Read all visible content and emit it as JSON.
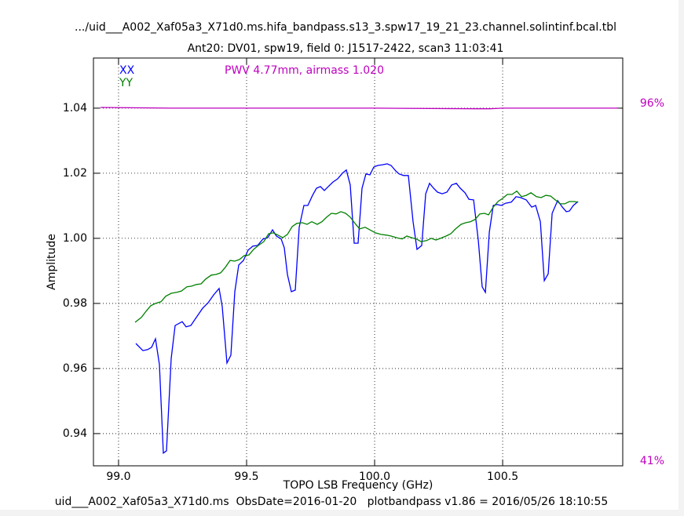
{
  "chart_data": {
    "type": "line",
    "title": ".../uid___A002_Xaf05a3_X71d0.ms.hifa_bandpass.s13_3.spw17_19_21_23.channel.solintinf.bcal.tbl",
    "subtitle": "Ant20: DV01,  spw19,  field 0: J1517-2422,  scan3  11:03:41",
    "annotation": "PWV 4.77mm, airmass 1.020",
    "annotation_color": "#bf00bf",
    "footer": "uid___A002_Xaf05a3_X71d0.ms  ObsDate=2016-01-20   plotbandpass v1.86 = 2016/05/26 18:10:55",
    "xlabel": "TOPO LSB Frequency (GHz)",
    "ylabel": "Amplitude",
    "xlim": [
      98.902,
      100.969
    ],
    "xticks": [
      {
        "value": 99.0,
        "label": "99.0"
      },
      99.5,
      {
        "value": 100.0,
        "label": "100.0"
      },
      100.5
    ],
    "ylim": [
      0.9301,
      1.0554
    ],
    "yticks": [
      0.94,
      0.96,
      0.98,
      {
        "value": 1.0,
        "label": "1.00"
      },
      1.02,
      1.04
    ],
    "y2lim": [
      40.3,
      103.0
    ],
    "y2ticks": [
      {
        "value": 96,
        "label": "96%"
      },
      {
        "value": 41,
        "label": "41%"
      }
    ],
    "grid": true,
    "legend": "upper left",
    "series": [
      {
        "name": "XX",
        "color": "#0000ff",
        "x": [
          99.0675,
          99.0951,
          99.1135,
          99.1288,
          99.1442,
          99.1595,
          99.1748,
          99.1871,
          99.2055,
          99.2209,
          99.2485,
          99.2638,
          99.2822,
          99.3037,
          99.3282,
          99.3497,
          99.3712,
          99.3926,
          99.4049,
          99.4233,
          99.4387,
          99.454,
          99.4693,
          99.4877,
          99.5061,
          99.5245,
          99.5429,
          99.5644,
          99.5828,
          99.6012,
          99.6166,
          99.635,
          99.6472,
          99.6595,
          99.6748,
          99.6902,
          99.7055,
          99.7239,
          99.7393,
          99.7577,
          99.773,
          99.7883,
          99.8037,
          99.819,
          99.8374,
          99.8558,
          99.8742,
          99.8896,
          99.9049,
          99.9202,
          99.9356,
          99.9509,
          99.9663,
          99.9816,
          99.9969,
          100.0123,
          100.0307,
          100.0491,
          100.0644,
          100.0828,
          100.0951,
          100.1135,
          100.1319,
          100.1503,
          100.1656,
          100.184,
          100.1994,
          100.2147,
          100.2301,
          100.2454,
          100.2638,
          100.2822,
          100.3006,
          100.319,
          100.3344,
          100.3528,
          100.3681,
          100.3865,
          100.4049,
          100.4202,
          100.4325,
          100.4479,
          100.4632,
          100.4785,
          100.4939,
          100.5123,
          100.5337,
          100.5521,
          100.5706,
          100.592,
          100.6135,
          100.6288,
          100.6472,
          100.6626,
          100.6779,
          100.6933,
          100.7147,
          100.7331,
          100.7485,
          100.7607,
          100.7761,
          100.7945
        ],
        "values": [
          0.9677,
          0.9655,
          0.9658,
          0.9665,
          0.9691,
          0.9612,
          0.934,
          0.9347,
          0.9631,
          0.9732,
          0.9744,
          0.9728,
          0.9732,
          0.9757,
          0.9785,
          0.9802,
          0.9826,
          0.9846,
          0.979,
          0.9617,
          0.9641,
          0.9836,
          0.9918,
          0.9932,
          0.9964,
          0.9976,
          0.9978,
          0.9998,
          1.0002,
          1.0026,
          1.0007,
          0.9998,
          0.9971,
          0.9889,
          0.9836,
          0.9841,
          1.0034,
          1.0101,
          1.0101,
          1.0132,
          1.0154,
          1.0159,
          1.0147,
          1.0159,
          1.0173,
          1.0183,
          1.02,
          1.021,
          1.0164,
          0.9985,
          0.9985,
          1.0154,
          1.0198,
          1.0195,
          1.0219,
          1.0224,
          1.0226,
          1.0229,
          1.0224,
          1.0207,
          1.0198,
          1.0193,
          1.0193,
          1.0051,
          0.9966,
          0.9978,
          1.0137,
          1.0169,
          1.0154,
          1.0142,
          1.0137,
          1.0142,
          1.0164,
          1.0169,
          1.0154,
          1.014,
          1.012,
          1.0118,
          0.9993,
          0.9851,
          0.9834,
          1.0019,
          1.0101,
          1.0104,
          1.0101,
          1.0108,
          1.0111,
          1.0128,
          1.0125,
          1.0118,
          1.0096,
          1.0101,
          1.0051,
          0.987,
          0.9891,
          1.0077,
          1.0116,
          1.0096,
          1.0082,
          1.0084,
          1.0101,
          1.0113
        ]
      },
      {
        "name": "YY",
        "color": "#008000",
        "x": [
          99.0644,
          99.089,
          99.1074,
          99.1258,
          99.1442,
          99.1656,
          99.184,
          99.2055,
          99.227,
          99.2454,
          99.2669,
          99.2853,
          99.3037,
          99.3221,
          99.3405,
          99.362,
          99.3804,
          99.3988,
          99.4172,
          99.4356,
          99.454,
          99.4724,
          99.4908,
          99.5092,
          99.5276,
          99.546,
          99.5675,
          99.5859,
          99.6043,
          99.6227,
          99.6411,
          99.6595,
          99.6779,
          99.6963,
          99.7178,
          99.7362,
          99.7546,
          99.7761,
          99.7945,
          99.8129,
          99.8313,
          99.8497,
          99.8681,
          99.8865,
          99.9049,
          99.9233,
          99.9417,
          99.9632,
          99.9816,
          100.0031,
          100.0245,
          100.046,
          100.0644,
          100.0859,
          100.1074,
          100.1258,
          100.1442,
          100.1626,
          100.181,
          100.2025,
          100.2209,
          100.2393,
          100.2577,
          100.2791,
          100.2975,
          100.316,
          100.3374,
          100.3558,
          100.3742,
          100.3926,
          100.411,
          100.4294,
          100.4448,
          100.4632,
          100.4816,
          100.5,
          100.5184,
          100.5368,
          100.5552,
          100.5736,
          100.592,
          100.6104,
          100.6319,
          100.6503,
          100.6687,
          100.6871,
          100.7055,
          100.7239,
          100.7423,
          100.7607,
          100.7791,
          100.7945
        ],
        "values": [
          0.9742,
          0.9757,
          0.9776,
          0.9793,
          0.98,
          0.9805,
          0.9822,
          0.9831,
          0.9834,
          0.9838,
          0.9851,
          0.9853,
          0.9858,
          0.986,
          0.9875,
          0.9887,
          0.9889,
          0.9894,
          0.9911,
          0.9932,
          0.993,
          0.9935,
          0.9947,
          0.9949,
          0.9966,
          0.9978,
          0.999,
          1.0014,
          1.0017,
          1.001,
          1.0002,
          1.0012,
          1.0036,
          1.0046,
          1.0048,
          1.0043,
          1.0051,
          1.0043,
          1.0051,
          1.0065,
          1.0077,
          1.0075,
          1.0082,
          1.0077,
          1.0065,
          1.0046,
          1.0029,
          1.0034,
          1.0026,
          1.0017,
          1.0012,
          1.001,
          1.0007,
          1.0002,
          0.9998,
          1.0007,
          1.0002,
          0.9998,
          0.999,
          0.9993,
          1.0,
          0.9995,
          1.0,
          1.0007,
          1.0014,
          1.0029,
          1.0043,
          1.0048,
          1.0051,
          1.0058,
          1.0075,
          1.0077,
          1.0072,
          1.0096,
          1.0113,
          1.0123,
          1.0135,
          1.0135,
          1.0145,
          1.0128,
          1.0132,
          1.014,
          1.0128,
          1.0125,
          1.0132,
          1.013,
          1.0118,
          1.0106,
          1.0106,
          1.0113,
          1.0113,
          1.0111
        ]
      },
      {
        "color": "#bf00bf",
        "axis": "y2",
        "x": [
          98.93,
          99.2,
          99.6,
          100.0,
          100.4,
          100.45,
          100.5,
          100.8,
          100.95
        ],
        "values": [
          95.4,
          95.3,
          95.3,
          95.3,
          95.2,
          95.2,
          95.3,
          95.3,
          95.3
        ]
      }
    ]
  }
}
